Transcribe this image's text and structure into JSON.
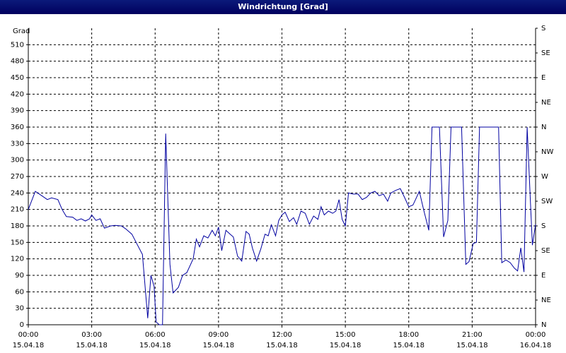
{
  "chart_data": {
    "type": "line",
    "title": "Windrichtung [Grad]",
    "ylabel": "Grad",
    "color": "#0000a0",
    "grid": true,
    "xlim": [
      0,
      24
    ],
    "xticks": [
      {
        "value": 0,
        "label": "00:00"
      },
      {
        "value": 3,
        "label": "03:00"
      },
      {
        "value": 6,
        "label": "06:00"
      },
      {
        "value": 9,
        "label": "09:00"
      },
      {
        "value": 12,
        "label": "12:00"
      },
      {
        "value": 15,
        "label": "15:00"
      },
      {
        "value": 18,
        "label": "18:00"
      },
      {
        "value": 21,
        "label": "21:00"
      },
      {
        "value": 24,
        "label": "00:00"
      }
    ],
    "xtick_dates": [
      "15.04.18",
      "15.04.18",
      "15.04.18",
      "15.04.18",
      "15.04.18",
      "15.04.18",
      "15.04.18",
      "15.04.18",
      "16.04.18"
    ],
    "ylim": [
      0,
      540
    ],
    "yticks": [
      0,
      30,
      60,
      90,
      120,
      150,
      180,
      210,
      240,
      270,
      300,
      330,
      360,
      390,
      420,
      450,
      480,
      510
    ],
    "y2lim": [
      0,
      540
    ],
    "y2ticks": [
      {
        "value": 0,
        "label": "N"
      },
      {
        "value": 45,
        "label": "NE"
      },
      {
        "value": 90,
        "label": "E"
      },
      {
        "value": 135,
        "label": "SE"
      },
      {
        "value": 180,
        "label": "S"
      },
      {
        "value": 225,
        "label": "SW"
      },
      {
        "value": 270,
        "label": "W"
      },
      {
        "value": 315,
        "label": "NW"
      },
      {
        "value": 360,
        "label": "N"
      },
      {
        "value": 405,
        "label": "NE"
      },
      {
        "value": 450,
        "label": "E"
      },
      {
        "value": 495,
        "label": "SE"
      },
      {
        "value": 540,
        "label": "S"
      }
    ],
    "x": [
      0.0,
      0.33,
      0.6,
      0.9,
      1.1,
      1.4,
      1.6,
      1.8,
      2.1,
      2.3,
      2.5,
      2.7,
      2.9,
      3.0,
      3.2,
      3.4,
      3.6,
      3.9,
      4.1,
      4.4,
      4.6,
      4.9,
      5.1,
      5.4,
      5.65,
      5.8,
      5.95,
      6.05,
      6.2,
      6.35,
      6.5,
      6.7,
      6.85,
      7.1,
      7.3,
      7.5,
      7.8,
      7.95,
      8.1,
      8.3,
      8.5,
      8.7,
      8.85,
      9.0,
      9.15,
      9.35,
      9.55,
      9.7,
      9.9,
      10.1,
      10.3,
      10.45,
      10.6,
      10.8,
      11.0,
      11.2,
      11.35,
      11.5,
      11.7,
      11.85,
      12.0,
      12.15,
      12.35,
      12.55,
      12.7,
      12.9,
      13.1,
      13.3,
      13.5,
      13.7,
      13.85,
      14.0,
      14.2,
      14.4,
      14.55,
      14.7,
      14.85,
      15.0,
      15.15,
      15.35,
      15.6,
      15.8,
      16.0,
      16.2,
      16.4,
      16.6,
      16.8,
      17.0,
      17.15,
      17.4,
      17.6,
      17.8,
      18.0,
      18.2,
      18.5,
      18.7,
      18.95,
      19.1,
      19.45,
      19.65,
      19.85,
      20.0,
      20.5,
      20.7,
      20.85,
      21.05,
      21.2,
      21.35,
      22.25,
      22.4,
      22.6,
      22.8,
      23.0,
      23.15,
      23.3,
      23.45,
      23.6,
      23.75,
      23.85,
      24.0
    ],
    "values": [
      210,
      243,
      236,
      228,
      231,
      228,
      210,
      197,
      196,
      190,
      193,
      189,
      193,
      200,
      190,
      193,
      176,
      180,
      181,
      180,
      175,
      165,
      150,
      128,
      12,
      90,
      70,
      5,
      0,
      0,
      348,
      110,
      58,
      68,
      90,
      95,
      120,
      156,
      142,
      162,
      158,
      172,
      162,
      178,
      135,
      172,
      165,
      160,
      125,
      116,
      170,
      165,
      140,
      116,
      138,
      165,
      162,
      182,
      162,
      190,
      200,
      205,
      188,
      195,
      183,
      207,
      203,
      183,
      198,
      192,
      215,
      200,
      207,
      203,
      207,
      228,
      192,
      180,
      240,
      238,
      238,
      228,
      232,
      240,
      243,
      235,
      238,
      225,
      240,
      245,
      248,
      232,
      215,
      218,
      243,
      210,
      172,
      360,
      360,
      160,
      190,
      360,
      360,
      110,
      115,
      148,
      150,
      360,
      360,
      113,
      118,
      113,
      103,
      98,
      140,
      96,
      360,
      230,
      145,
      183
    ]
  }
}
